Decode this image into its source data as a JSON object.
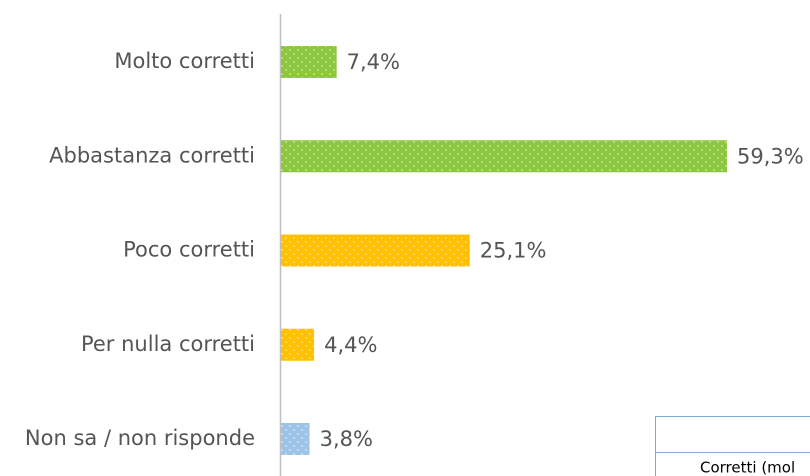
{
  "chart_data": {
    "type": "hbar",
    "categories": [
      "Molto corretti",
      "Abbastanza corretti",
      "Poco corretti",
      "Per nulla corretti",
      "Non sa / non risponde"
    ],
    "values": [
      7.4,
      59.3,
      25.1,
      4.4,
      3.8
    ],
    "value_labels": [
      "7,4%",
      "59,3%",
      "25,1%",
      "4,4%",
      "3,8%"
    ],
    "colors": [
      "#8dc63f",
      "#8dc63f",
      "#ffc000",
      "#ffc000",
      "#9dc3e6"
    ],
    "xlim": [
      0,
      59.3
    ],
    "annotation": "Corretti (mol"
  }
}
